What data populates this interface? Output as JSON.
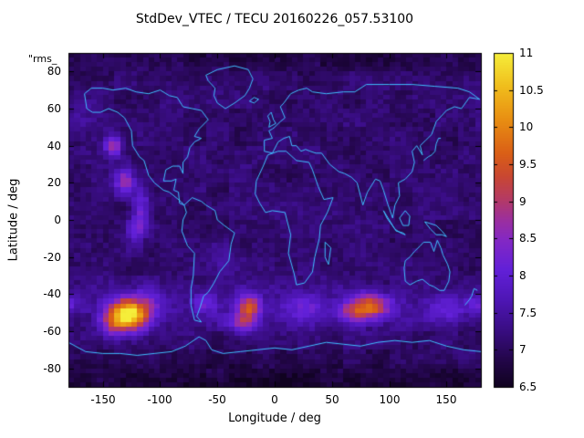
{
  "chart_data": {
    "type": "heatmap",
    "title": "StdDev_VTEC / TECU 20160226_057.53100",
    "xlabel": "Longitude / deg",
    "ylabel": "Latitude / deg",
    "annotation": "\"rms_",
    "x_range": [
      -180,
      180
    ],
    "y_range": [
      -90,
      90
    ],
    "x_ticks": [
      -150,
      -100,
      -50,
      0,
      50,
      100,
      150
    ],
    "y_ticks": [
      -80,
      -60,
      -40,
      -20,
      0,
      20,
      40,
      60,
      80
    ],
    "grid": false,
    "colorbar": {
      "min": 6.5,
      "max": 11,
      "ticks": [
        6.5,
        7,
        7.5,
        8,
        8.5,
        9,
        9.5,
        10,
        10.5,
        11
      ],
      "position": "right"
    },
    "colors": {
      "background": "#ffffff",
      "border": "#000000",
      "text": "#000000",
      "coastline": "#3fbfff"
    },
    "palette": [
      [
        0.0,
        "#100220"
      ],
      [
        0.08,
        "#23064a"
      ],
      [
        0.17,
        "#390d83"
      ],
      [
        0.26,
        "#4e16b5"
      ],
      [
        0.35,
        "#6220d8"
      ],
      [
        0.44,
        "#8428c4"
      ],
      [
        0.5,
        "#9c2f9e"
      ],
      [
        0.56,
        "#b43a66"
      ],
      [
        0.63,
        "#c94732"
      ],
      [
        0.7,
        "#da5f16"
      ],
      [
        0.8,
        "#e88e12"
      ],
      [
        0.9,
        "#f0bd1c"
      ],
      [
        1.0,
        "#f5ee3a"
      ]
    ],
    "field": {
      "units": "TECU",
      "base": 7.1,
      "cell_lon": 5,
      "cell_lat": 2.5,
      "noise": 0.16,
      "noise_coarse": 0.12,
      "blobs": [
        {
          "lon": -127,
          "lat": -51,
          "amp": 3.9,
          "slon": 12,
          "slat": 6
        },
        {
          "lon": -142,
          "lat": -56,
          "amp": 1.1,
          "slon": 8,
          "slat": 5
        },
        {
          "lon": -108,
          "lat": -44,
          "amp": 0.8,
          "slon": 7,
          "slat": 5
        },
        {
          "lon": -22,
          "lat": -46,
          "amp": 2.2,
          "slon": 7,
          "slat": 4
        },
        {
          "lon": -27,
          "lat": -55,
          "amp": 1.6,
          "slon": 9,
          "slat": 4
        },
        {
          "lon": 82,
          "lat": -47,
          "amp": 2.3,
          "slon": 12,
          "slat": 5
        },
        {
          "lon": 65,
          "lat": -50,
          "amp": 0.9,
          "slon": 8,
          "slat": 4
        },
        {
          "lon": -141,
          "lat": 40,
          "amp": 1.7,
          "slon": 5,
          "slat": 4
        },
        {
          "lon": -131,
          "lat": 21,
          "amp": 1.7,
          "slon": 6,
          "slat": 5
        },
        {
          "lon": -116,
          "lat": 6,
          "amp": 1.1,
          "slon": 5,
          "slat": 8
        },
        {
          "lon": -122,
          "lat": -6,
          "amp": 0.9,
          "slon": 5,
          "slat": 6
        },
        {
          "lon": -60,
          "lat": -45,
          "amp": 0.9,
          "slon": 8,
          "slat": 4
        },
        {
          "lon": 25,
          "lat": -47,
          "amp": 0.7,
          "slon": 15,
          "slat": 5
        },
        {
          "lon": 150,
          "lat": -48,
          "amp": 0.8,
          "slon": 12,
          "slat": 5
        },
        {
          "lon": 178,
          "lat": -45,
          "amp": 0.7,
          "slon": 7,
          "slat": 4
        },
        {
          "lon": -170,
          "lat": 55,
          "amp": 0.5,
          "slon": 10,
          "slat": 6
        },
        {
          "lon": -45,
          "lat": -20,
          "amp": 0.4,
          "slon": 9,
          "slat": 6
        },
        {
          "lon": 0,
          "lat": -47,
          "amp": 0.35,
          "slon": 170,
          "slat": 9
        },
        {
          "lon": 0,
          "lat": -90,
          "amp": -0.45,
          "slon": 200,
          "slat": 10
        },
        {
          "lon": 0,
          "lat": 90,
          "amp": -0.3,
          "slon": 200,
          "slat": 8
        }
      ]
    },
    "coastlines": [
      [
        [
          -166,
          68
        ],
        [
          -160,
          71
        ],
        [
          -150,
          71
        ],
        [
          -141,
          70
        ],
        [
          -130,
          71
        ],
        [
          -121,
          69
        ],
        [
          -110,
          68
        ],
        [
          -100,
          70
        ],
        [
          -92,
          67
        ],
        [
          -85,
          66
        ],
        [
          -80,
          61
        ],
        [
          -72,
          60
        ],
        [
          -64,
          59
        ],
        [
          -58,
          54
        ],
        [
          -66,
          49
        ],
        [
          -70,
          45
        ],
        [
          -64,
          44
        ],
        [
          -70,
          42
        ],
        [
          -74,
          39
        ],
        [
          -76,
          34
        ],
        [
          -80,
          31
        ],
        [
          -80,
          25
        ],
        [
          -83,
          29
        ],
        [
          -89,
          29
        ],
        [
          -95,
          27
        ],
        [
          -97,
          21
        ],
        [
          -90,
          21
        ],
        [
          -86,
          22
        ],
        [
          -88,
          16
        ],
        [
          -84,
          15
        ],
        [
          -83,
          9
        ],
        [
          -79,
          8
        ],
        [
          -82,
          10
        ],
        [
          -86,
          12
        ],
        [
          -92,
          15
        ],
        [
          -97,
          16
        ],
        [
          -105,
          20
        ],
        [
          -110,
          24
        ],
        [
          -114,
          32
        ],
        [
          -118,
          34
        ],
        [
          -124,
          40
        ],
        [
          -125,
          48
        ],
        [
          -131,
          55
        ],
        [
          -137,
          58
        ],
        [
          -145,
          60
        ],
        [
          -152,
          58
        ],
        [
          -159,
          58
        ],
        [
          -164,
          60
        ],
        [
          -166,
          68
        ]
      ],
      [
        [
          -79,
          8
        ],
        [
          -72,
          12
        ],
        [
          -64,
          10
        ],
        [
          -60,
          8
        ],
        [
          -52,
          5
        ],
        [
          -50,
          0
        ],
        [
          -44,
          -3
        ],
        [
          -35,
          -7
        ],
        [
          -38,
          -13
        ],
        [
          -40,
          -22
        ],
        [
          -48,
          -28
        ],
        [
          -53,
          -34
        ],
        [
          -58,
          -39
        ],
        [
          -62,
          -41
        ],
        [
          -65,
          -47
        ],
        [
          -68,
          -52
        ],
        [
          -64,
          -55
        ],
        [
          -70,
          -54
        ],
        [
          -73,
          -46
        ],
        [
          -73,
          -37
        ],
        [
          -71,
          -30
        ],
        [
          -70,
          -18
        ],
        [
          -76,
          -14
        ],
        [
          -81,
          -6
        ],
        [
          -80,
          0
        ],
        [
          -77,
          4
        ],
        [
          -79,
          8
        ]
      ],
      [
        [
          -6,
          35
        ],
        [
          3,
          37
        ],
        [
          10,
          37
        ],
        [
          19,
          32
        ],
        [
          30,
          31
        ],
        [
          33,
          27
        ],
        [
          38,
          18
        ],
        [
          43,
          11
        ],
        [
          51,
          12
        ],
        [
          46,
          4
        ],
        [
          40,
          -3
        ],
        [
          39,
          -10
        ],
        [
          35,
          -20
        ],
        [
          33,
          -28
        ],
        [
          26,
          -34
        ],
        [
          19,
          -35
        ],
        [
          17,
          -29
        ],
        [
          12,
          -18
        ],
        [
          14,
          -8
        ],
        [
          9,
          4
        ],
        [
          -2,
          5
        ],
        [
          -8,
          4
        ],
        [
          -13,
          9
        ],
        [
          -17,
          14
        ],
        [
          -16,
          21
        ],
        [
          -10,
          29
        ],
        [
          -6,
          35
        ]
      ],
      [
        [
          -9,
          43
        ],
        [
          -9,
          37
        ],
        [
          -2,
          36
        ],
        [
          3,
          42
        ],
        [
          8,
          44
        ],
        [
          13,
          45
        ],
        [
          15,
          40
        ],
        [
          19,
          40
        ],
        [
          23,
          37
        ],
        [
          27,
          38
        ],
        [
          31,
          37
        ],
        [
          36,
          36
        ],
        [
          41,
          36
        ],
        [
          48,
          30
        ],
        [
          56,
          26
        ],
        [
          61,
          25
        ],
        [
          67,
          23
        ],
        [
          72,
          20
        ],
        [
          77,
          8
        ],
        [
          81,
          15
        ],
        [
          88,
          22
        ],
        [
          92,
          21
        ],
        [
          95,
          16
        ],
        [
          99,
          8
        ],
        [
          103,
          1
        ],
        [
          105,
          8
        ],
        [
          109,
          13
        ],
        [
          108,
          20
        ],
        [
          114,
          22
        ],
        [
          120,
          26
        ],
        [
          122,
          31
        ],
        [
          120,
          37
        ],
        [
          124,
          40
        ],
        [
          129,
          35
        ],
        [
          127,
          40
        ],
        [
          132,
          43
        ],
        [
          137,
          46
        ],
        [
          141,
          53
        ],
        [
          150,
          59
        ],
        [
          157,
          61
        ],
        [
          163,
          60
        ],
        [
          170,
          66
        ],
        [
          179,
          65
        ],
        [
          170,
          69
        ],
        [
          160,
          71
        ],
        [
          140,
          72
        ],
        [
          120,
          73
        ],
        [
          100,
          73
        ],
        [
          80,
          73
        ],
        [
          70,
          69
        ],
        [
          60,
          69
        ],
        [
          45,
          68
        ],
        [
          33,
          69
        ],
        [
          28,
          71
        ],
        [
          21,
          70
        ],
        [
          14,
          68
        ],
        [
          8,
          63
        ],
        [
          5,
          61
        ],
        [
          7,
          58
        ],
        [
          9,
          55
        ],
        [
          5,
          53
        ],
        [
          0,
          50
        ],
        [
          -2,
          49
        ],
        [
          -5,
          48
        ],
        [
          -2,
          44
        ],
        [
          -9,
          43
        ]
      ],
      [
        [
          -5,
          50
        ],
        [
          -4,
          53
        ],
        [
          -6,
          56
        ],
        [
          -3,
          58
        ],
        [
          -1,
          54
        ],
        [
          1,
          52
        ],
        [
          -5,
          50
        ]
      ],
      [
        [
          -43,
          60
        ],
        [
          -50,
          63
        ],
        [
          -53,
          67
        ],
        [
          -52,
          71
        ],
        [
          -58,
          75
        ],
        [
          -60,
          78
        ],
        [
          -50,
          81
        ],
        [
          -35,
          83
        ],
        [
          -23,
          81
        ],
        [
          -19,
          76
        ],
        [
          -22,
          71
        ],
        [
          -26,
          67
        ],
        [
          -35,
          63
        ],
        [
          -43,
          60
        ]
      ],
      [
        [
          -22,
          64
        ],
        [
          -18,
          66
        ],
        [
          -14,
          65
        ],
        [
          -18,
          63
        ],
        [
          -22,
          64
        ]
      ],
      [
        [
          114,
          -22
        ],
        [
          118,
          -20
        ],
        [
          122,
          -17
        ],
        [
          127,
          -14
        ],
        [
          130,
          -12
        ],
        [
          136,
          -12
        ],
        [
          139,
          -17
        ],
        [
          142,
          -11
        ],
        [
          145,
          -15
        ],
        [
          147,
          -19
        ],
        [
          151,
          -24
        ],
        [
          153,
          -28
        ],
        [
          152,
          -33
        ],
        [
          148,
          -38
        ],
        [
          144,
          -38
        ],
        [
          139,
          -36
        ],
        [
          135,
          -35
        ],
        [
          129,
          -32
        ],
        [
          124,
          -33
        ],
        [
          118,
          -35
        ],
        [
          114,
          -33
        ],
        [
          113,
          -26
        ],
        [
          114,
          -22
        ]
      ],
      [
        [
          166,
          -46
        ],
        [
          170,
          -43
        ],
        [
          172,
          -41
        ],
        [
          174,
          -37
        ],
        [
          177,
          -38
        ]
      ],
      [
        [
          44,
          -12
        ],
        [
          49,
          -15
        ],
        [
          47,
          -24
        ],
        [
          44,
          -20
        ],
        [
          44,
          -12
        ]
      ],
      [
        [
          130,
          32
        ],
        [
          134,
          34
        ],
        [
          137,
          35
        ],
        [
          140,
          37
        ],
        [
          141,
          41
        ],
        [
          143,
          44
        ],
        [
          145,
          44
        ]
      ],
      [
        [
          109,
          1
        ],
        [
          114,
          5
        ],
        [
          118,
          2
        ],
        [
          117,
          -3
        ],
        [
          112,
          -3
        ],
        [
          109,
          1
        ]
      ],
      [
        [
          95,
          5
        ],
        [
          100,
          0
        ],
        [
          104,
          -4
        ],
        [
          106,
          -6
        ],
        [
          112,
          -7
        ],
        [
          114,
          -8
        ],
        [
          110,
          -7
        ],
        [
          105,
          -5
        ],
        [
          98,
          1
        ],
        [
          95,
          5
        ]
      ],
      [
        [
          131,
          -1
        ],
        [
          136,
          -2
        ],
        [
          141,
          -3
        ],
        [
          146,
          -6
        ],
        [
          150,
          -9
        ],
        [
          146,
          -8
        ],
        [
          141,
          -8
        ],
        [
          136,
          -5
        ],
        [
          131,
          -1
        ]
      ],
      [
        [
          -180,
          -66
        ],
        [
          -165,
          -71
        ],
        [
          -150,
          -72
        ],
        [
          -135,
          -72
        ],
        [
          -120,
          -73
        ],
        [
          -105,
          -72
        ],
        [
          -90,
          -71
        ],
        [
          -78,
          -68
        ],
        [
          -66,
          -63
        ],
        [
          -60,
          -65
        ],
        [
          -55,
          -70
        ],
        [
          -45,
          -72
        ],
        [
          -30,
          -71
        ],
        [
          -15,
          -70
        ],
        [
          0,
          -69
        ],
        [
          15,
          -70
        ],
        [
          30,
          -68
        ],
        [
          45,
          -66
        ],
        [
          60,
          -67
        ],
        [
          75,
          -68
        ],
        [
          90,
          -66
        ],
        [
          105,
          -65
        ],
        [
          120,
          -66
        ],
        [
          135,
          -65
        ],
        [
          150,
          -68
        ],
        [
          165,
          -70
        ],
        [
          180,
          -71
        ]
      ]
    ]
  }
}
